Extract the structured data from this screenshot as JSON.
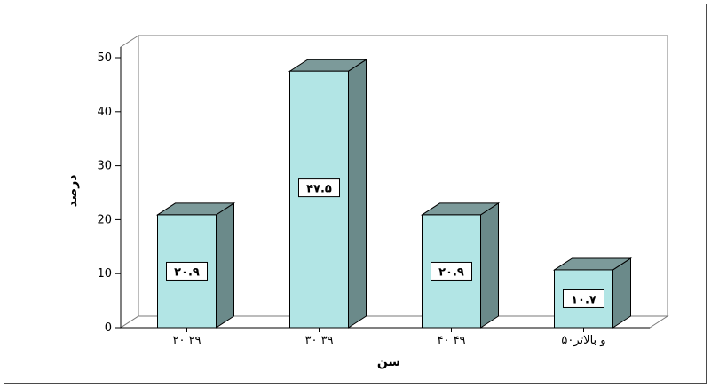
{
  "chart_data": {
    "type": "bar",
    "categories": [
      "۲۰ ۲۹",
      "۳۰ ۳۹",
      "۴۰ ۴۹",
      "۵۰و بالاتر"
    ],
    "values": [
      20.9,
      47.5,
      20.9,
      10.7
    ],
    "data_labels": [
      "۲۰.۹",
      "۴۷.۵",
      "۲۰.۹",
      "۱۰.۷"
    ],
    "xlabel": "سن",
    "ylabel": "درصد",
    "ylim": [
      0,
      50
    ],
    "yticks": [
      "0",
      "10",
      "20",
      "30",
      "40",
      "50"
    ],
    "grid": false,
    "style": "3d-bar",
    "colors": {
      "bar_front": "#b2e5e5",
      "bar_side": "#6b8a8a",
      "bar_top": "#7c9a9a",
      "outline": "#000000"
    }
  }
}
